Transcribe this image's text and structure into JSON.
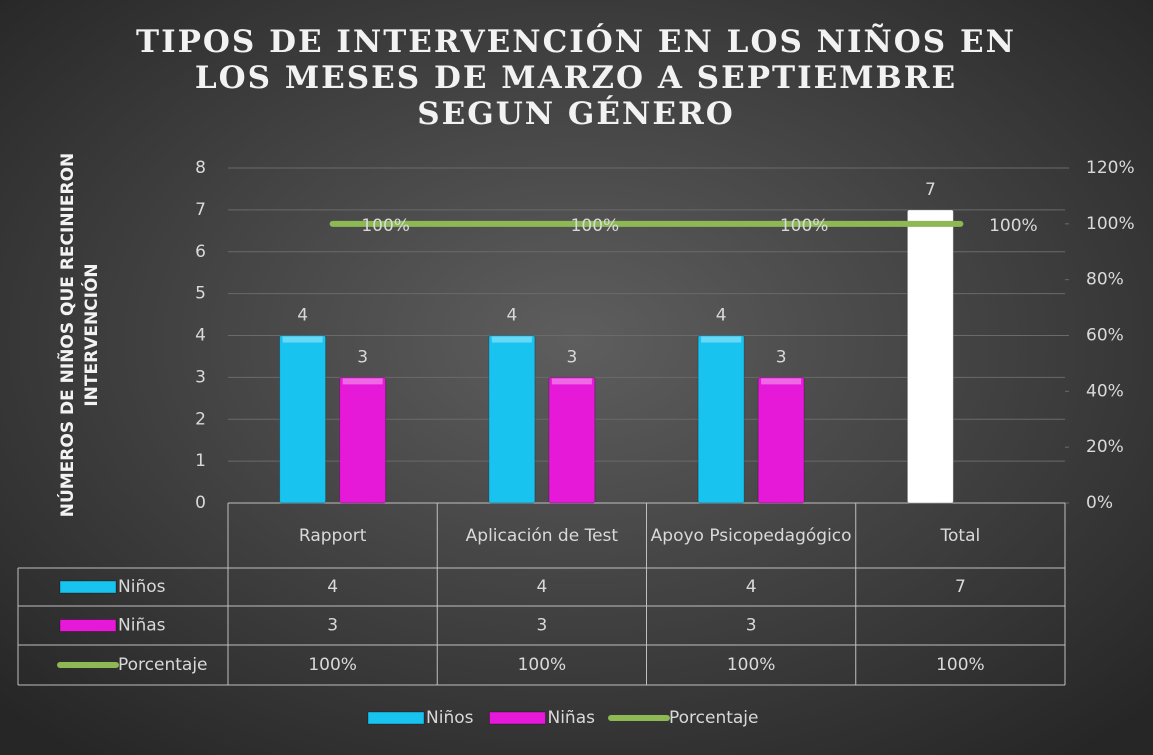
{
  "chart_data": {
    "type": "bar",
    "title": "TIPOS DE INTERVENCIÓN EN LOS NIÑOS EN LOS MESES DE MARZO A SEPTIEMBRE SEGUN GÉNERO",
    "y_axis_label": "NÚMEROS DE NIÑOS QUE RECINIERON INTERVENCIÓN",
    "categories": [
      "Rapport",
      "Aplicación de Test",
      "Apoyo Psicopedagógico",
      "Total"
    ],
    "series": [
      {
        "name": "Niños",
        "type": "bar",
        "color": "#19c3f0",
        "point_colors": [
          "#19c3f0",
          "#19c3f0",
          "#19c3f0",
          "#ffffff"
        ],
        "values": [
          4,
          4,
          4,
          7
        ]
      },
      {
        "name": "Niñas",
        "type": "bar",
        "color": "#e619d9",
        "values": [
          3,
          3,
          3,
          null
        ]
      },
      {
        "name": "Porcentaje",
        "type": "line",
        "axis": "y2",
        "color": "#8db854",
        "values": [
          100,
          100,
          100,
          100
        ],
        "value_labels": [
          "100%",
          "100%",
          "100%",
          "100%"
        ]
      }
    ],
    "ylim": [
      0,
      8
    ],
    "yticks": [
      0,
      1,
      2,
      3,
      4,
      5,
      6,
      7,
      8
    ],
    "y2lim": [
      0,
      120
    ],
    "y2ticks": [
      {
        "value": 0,
        "label": "0%"
      },
      {
        "value": 20,
        "label": "20%"
      },
      {
        "value": 40,
        "label": "40%"
      },
      {
        "value": 60,
        "label": "60%"
      },
      {
        "value": 80,
        "label": "80%"
      },
      {
        "value": 100,
        "label": "100%"
      },
      {
        "value": 120,
        "label": "120%"
      }
    ],
    "grid": true,
    "legend": "bottom",
    "data_table": true
  }
}
